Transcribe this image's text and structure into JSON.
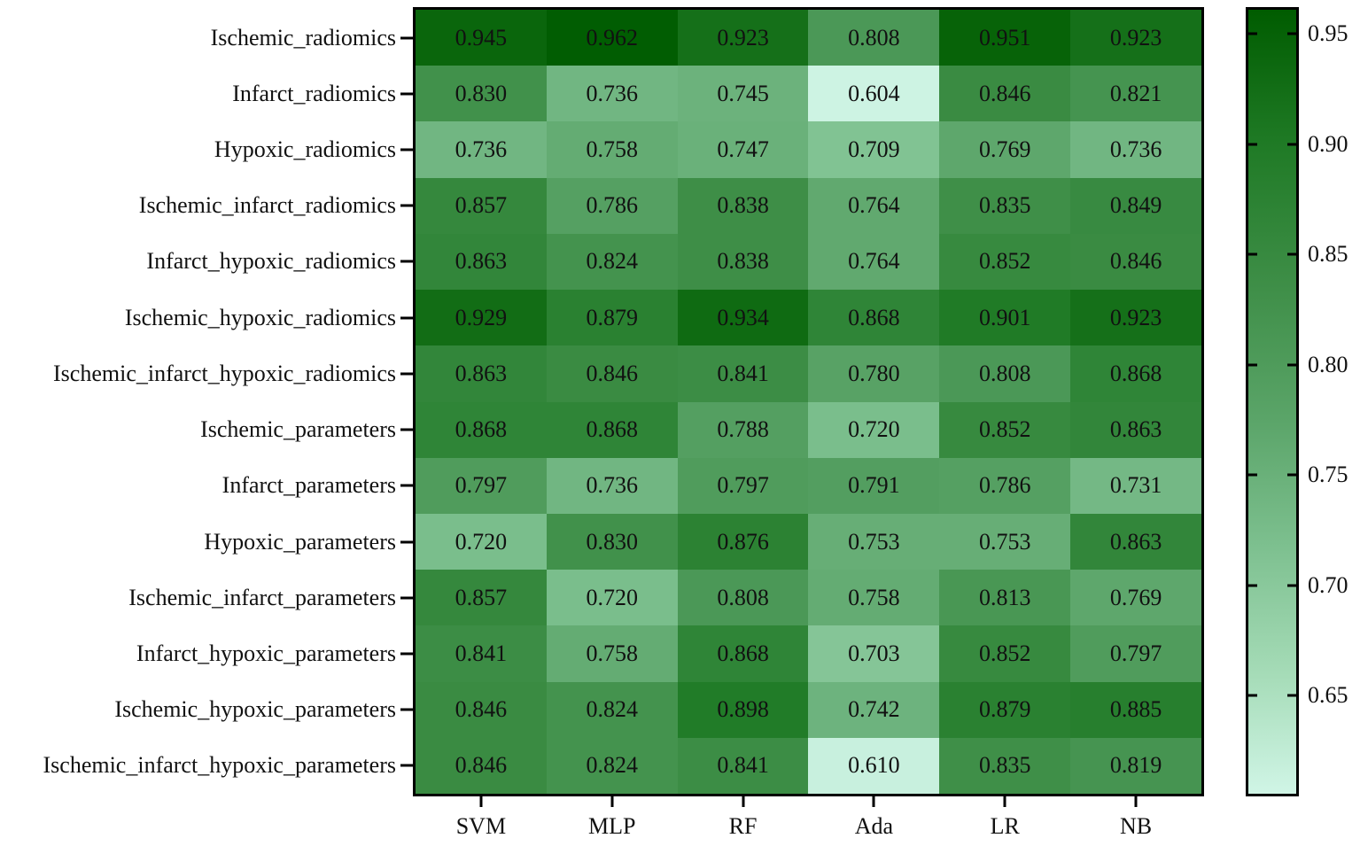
{
  "chart_data": {
    "type": "heatmap",
    "title": "",
    "xlabel": "",
    "ylabel": "",
    "x_categories": [
      "SVM",
      "MLP",
      "RF",
      "Ada",
      "LR",
      "NB"
    ],
    "y_categories": [
      "Ischemic_radiomics",
      "Infarct_radiomics",
      "Hypoxic_radiomics",
      "Ischemic_infarct_radiomics",
      "Infarct_hypoxic_radiomics",
      "Ischemic_hypoxic_radiomics",
      "Ischemic_infarct_hypoxic_radiomics",
      "Ischemic_parameters",
      "Infarct_parameters",
      "Hypoxic_parameters",
      "Ischemic_infarct_parameters",
      "Infarct_hypoxic_parameters",
      "Ischemic_hypoxic_parameters",
      "Ischemic_infarct_hypoxic_parameters"
    ],
    "values": [
      [
        "0.945",
        "0.962",
        "0.923",
        "0.808",
        "0.951",
        "0.923"
      ],
      [
        "0.830",
        "0.736",
        "0.745",
        "0.604",
        "0.846",
        "0.821"
      ],
      [
        "0.736",
        "0.758",
        "0.747",
        "0.709",
        "0.769",
        "0.736"
      ],
      [
        "0.857",
        "0.786",
        "0.838",
        "0.764",
        "0.835",
        "0.849"
      ],
      [
        "0.863",
        "0.824",
        "0.838",
        "0.764",
        "0.852",
        "0.846"
      ],
      [
        "0.929",
        "0.879",
        "0.934",
        "0.868",
        "0.901",
        "0.923"
      ],
      [
        "0.863",
        "0.846",
        "0.841",
        "0.780",
        "0.808",
        "0.868"
      ],
      [
        "0.868",
        "0.868",
        "0.788",
        "0.720",
        "0.852",
        "0.863"
      ],
      [
        "0.797",
        "0.736",
        "0.797",
        "0.791",
        "0.786",
        "0.731"
      ],
      [
        "0.720",
        "0.830",
        "0.876",
        "0.753",
        "0.753",
        "0.863"
      ],
      [
        "0.857",
        "0.720",
        "0.808",
        "0.758",
        "0.813",
        "0.769"
      ],
      [
        "0.841",
        "0.758",
        "0.868",
        "0.703",
        "0.852",
        "0.797"
      ],
      [
        "0.846",
        "0.824",
        "0.898",
        "0.742",
        "0.879",
        "0.885"
      ],
      [
        "0.846",
        "0.824",
        "0.841",
        "0.610",
        "0.835",
        "0.819"
      ]
    ],
    "colorbar": {
      "ticks": [
        "0.95",
        "0.90",
        "0.85",
        "0.80",
        "0.75",
        "0.70",
        "0.65"
      ],
      "range": [
        0.6,
        0.965
      ],
      "low_color": "#d0f5e6",
      "high_color": "#005c00"
    },
    "grid": false,
    "legend_position": "right"
  }
}
